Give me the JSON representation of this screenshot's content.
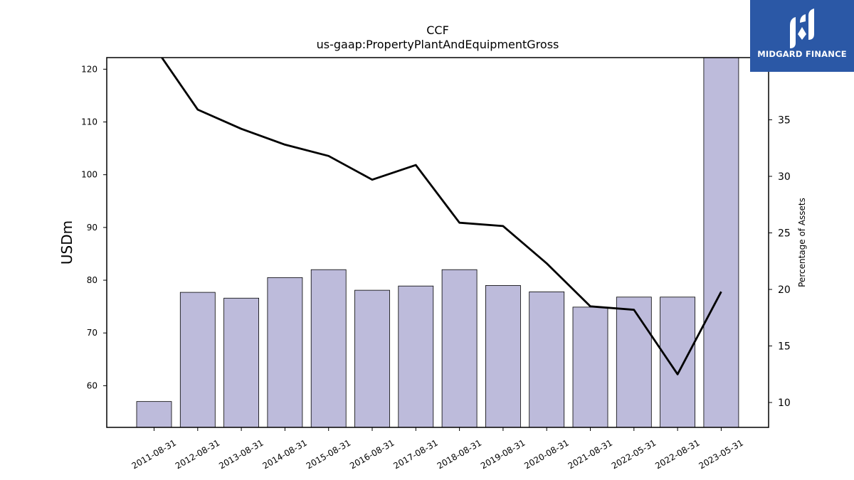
{
  "chart_data": {
    "type": "bar",
    "title": "CCF",
    "subtitle": "us-gaap:PropertyPlantAndEquipmentGross",
    "ylabel": "USDm",
    "y2label": "Percentage of Assets",
    "categories": [
      "2011-08-31",
      "2012-08-31",
      "2013-08-31",
      "2014-08-31",
      "2015-08-31",
      "2016-08-31",
      "2017-08-31",
      "2018-08-31",
      "2019-08-31",
      "2020-08-31",
      "2021-08-31",
      "2022-05-31",
      "2022-08-31",
      "2023-05-31"
    ],
    "series": [
      {
        "axis": "left",
        "kind": "bar",
        "color": "#bdbbdb",
        "values": [
          57.0,
          77.7,
          76.6,
          80.5,
          82.0,
          78.1,
          78.9,
          82.0,
          79.0,
          77.8,
          74.9,
          76.8,
          76.8,
          122.2
        ]
      },
      {
        "axis": "right",
        "kind": "line",
        "color": "#000000",
        "values": [
          41.5,
          35.9,
          34.2,
          32.8,
          31.8,
          29.7,
          31.0,
          25.9,
          25.6,
          22.3,
          18.5,
          18.2,
          12.5,
          19.8
        ]
      }
    ],
    "ylim": [
      52.1,
      122.2
    ],
    "y2lim": [
      7.8,
      40.5
    ],
    "yticks": [
      60,
      70,
      80,
      90,
      100,
      110,
      120
    ],
    "y2ticks": [
      10,
      15,
      20,
      25,
      30,
      35
    ],
    "grid": false,
    "legend": "none"
  },
  "logo": {
    "text": "MIDGARD FINANCE"
  }
}
